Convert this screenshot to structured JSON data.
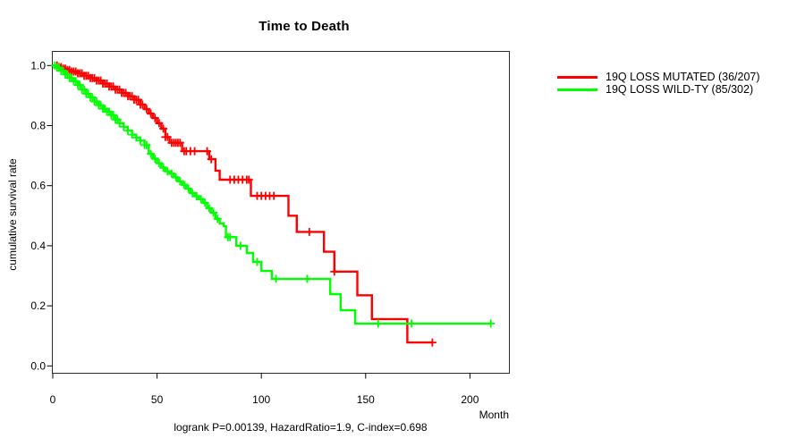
{
  "chart_data": {
    "type": "line",
    "subtype": "kaplan-meier-survival",
    "title": "Time to Death",
    "xlabel": "Month",
    "ylabel": "cumulative survival rate",
    "annotation": "logrank P=0.00139, HazardRatio=1.9, C-index=0.698",
    "x_tick_values": [
      0,
      50,
      100,
      150,
      200
    ],
    "x_tick_labels": [
      "0",
      "50",
      "100",
      "150",
      "200"
    ],
    "y_tick_values": [
      0.0,
      0.2,
      0.4,
      0.6,
      0.8,
      1.0
    ],
    "y_tick_labels": [
      "0.0",
      "0.2",
      "0.4",
      "0.6",
      "0.8",
      "1.0"
    ],
    "xlim": [
      0,
      219
    ],
    "ylim": [
      0,
      1.0
    ],
    "grid": false,
    "legend_position": "right-outside",
    "series": [
      {
        "name": "19Q LOSS MUTATED (36/207)",
        "color": "#ff0000",
        "end_month": 182,
        "steps": [
          [
            0,
            1.0
          ],
          [
            3,
            0.995
          ],
          [
            5,
            0.99
          ],
          [
            7,
            0.985
          ],
          [
            9,
            0.98
          ],
          [
            12,
            0.974
          ],
          [
            15,
            0.966
          ],
          [
            18,
            0.958
          ],
          [
            21,
            0.95
          ],
          [
            24,
            0.94
          ],
          [
            27,
            0.93
          ],
          [
            30,
            0.92
          ],
          [
            33,
            0.909
          ],
          [
            36,
            0.898
          ],
          [
            39,
            0.886
          ],
          [
            42,
            0.87
          ],
          [
            44,
            0.855
          ],
          [
            46,
            0.84
          ],
          [
            48,
            0.825
          ],
          [
            50,
            0.808
          ],
          [
            52,
            0.79
          ],
          [
            54,
            0.762
          ],
          [
            56,
            0.743
          ],
          [
            62,
            0.715
          ],
          [
            75,
            0.688
          ],
          [
            78,
            0.65
          ],
          [
            80,
            0.62
          ],
          [
            95,
            0.566
          ],
          [
            113,
            0.5
          ],
          [
            117,
            0.446
          ],
          [
            130,
            0.38
          ],
          [
            135,
            0.314
          ],
          [
            146,
            0.235
          ],
          [
            153,
            0.156
          ],
          [
            170,
            0.078
          ]
        ],
        "censor_months": [
          2,
          3,
          4,
          5,
          6,
          7,
          8,
          9,
          10,
          11,
          12,
          13,
          14,
          15,
          16,
          17,
          18,
          19,
          20,
          21,
          22,
          23,
          24,
          25,
          26,
          27,
          28,
          29,
          30,
          31,
          32,
          33,
          34,
          35,
          36,
          37,
          38,
          39,
          40,
          41,
          42,
          43,
          45,
          47,
          49,
          51,
          53,
          54,
          55,
          57,
          58,
          59,
          60,
          61,
          63,
          64,
          66,
          68,
          74,
          76,
          85,
          87,
          89,
          91,
          93,
          94,
          98,
          100,
          102,
          104,
          106,
          123,
          135,
          182
        ]
      },
      {
        "name": "19Q LOSS WILD-TY (85/302)",
        "color": "#00ff00",
        "end_month": 210,
        "steps": [
          [
            0,
            1.0
          ],
          [
            2,
            0.993
          ],
          [
            4,
            0.982
          ],
          [
            6,
            0.97
          ],
          [
            8,
            0.958
          ],
          [
            10,
            0.948
          ],
          [
            12,
            0.935
          ],
          [
            14,
            0.92
          ],
          [
            16,
            0.906
          ],
          [
            18,
            0.894
          ],
          [
            20,
            0.88
          ],
          [
            22,
            0.868
          ],
          [
            24,
            0.856
          ],
          [
            26,
            0.846
          ],
          [
            28,
            0.835
          ],
          [
            30,
            0.82
          ],
          [
            32,
            0.808
          ],
          [
            34,
            0.796
          ],
          [
            36,
            0.783
          ],
          [
            38,
            0.77
          ],
          [
            40,
            0.76
          ],
          [
            42,
            0.75
          ],
          [
            44,
            0.735
          ],
          [
            46,
            0.706
          ],
          [
            48,
            0.69
          ],
          [
            50,
            0.675
          ],
          [
            52,
            0.66
          ],
          [
            54,
            0.648
          ],
          [
            56,
            0.64
          ],
          [
            58,
            0.628
          ],
          [
            60,
            0.615
          ],
          [
            62,
            0.603
          ],
          [
            64,
            0.59
          ],
          [
            66,
            0.575
          ],
          [
            68,
            0.565
          ],
          [
            70,
            0.555
          ],
          [
            72,
            0.543
          ],
          [
            74,
            0.525
          ],
          [
            76,
            0.51
          ],
          [
            78,
            0.49
          ],
          [
            80,
            0.474
          ],
          [
            82,
            0.465
          ],
          [
            83,
            0.429
          ],
          [
            88,
            0.4
          ],
          [
            93,
            0.376
          ],
          [
            96,
            0.346
          ],
          [
            100,
            0.316
          ],
          [
            105,
            0.29
          ],
          [
            133,
            0.239
          ],
          [
            138,
            0.185
          ],
          [
            145,
            0.141
          ]
        ],
        "censor_months": [
          1,
          2,
          3,
          4,
          5,
          6,
          7,
          8,
          9,
          10,
          11,
          12,
          13,
          14,
          15,
          16,
          17,
          18,
          19,
          20,
          21,
          22,
          23,
          24,
          25,
          26,
          27,
          28,
          29,
          30,
          31,
          32,
          34,
          36,
          38,
          40,
          42,
          44,
          45,
          47,
          49,
          51,
          53,
          55,
          57,
          59,
          61,
          63,
          65,
          67,
          69,
          71,
          73,
          75,
          77,
          79,
          84,
          85,
          90,
          98,
          107,
          122,
          156,
          172,
          210
        ]
      }
    ]
  }
}
